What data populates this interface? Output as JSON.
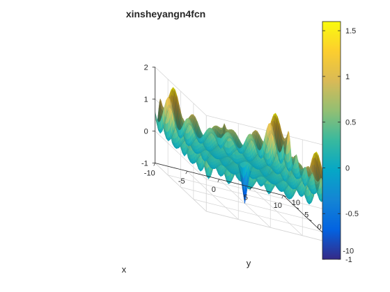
{
  "chart_data": {
    "type": "surface",
    "title": "xinsheyangn4fcn",
    "xlabel": "x",
    "ylabel": "y",
    "zlabel": "",
    "xlim": [
      -10,
      10
    ],
    "ylim": [
      -10,
      10
    ],
    "zlim": [
      -1,
      2
    ],
    "x_ticks": [
      "-10",
      "-5",
      "0",
      "5",
      "10"
    ],
    "y_ticks": [
      "-10",
      "-5",
      "0",
      "5",
      "10"
    ],
    "z_ticks": [
      "-1",
      "0",
      "1",
      "2"
    ],
    "colormap": "parula",
    "clim": [
      -1,
      1.6
    ],
    "colorbar_ticks": [
      "-1",
      "-0.5",
      "0",
      "0.5",
      "1",
      "1.5"
    ],
    "colorbar_tick_values": [
      -1,
      -0.5,
      0,
      0.5,
      1,
      1.5
    ],
    "z_range_observed": {
      "min": -1,
      "max": 1.6
    },
    "minimum_at": {
      "x": 0,
      "y": 0,
      "z": -1
    },
    "grid": true
  }
}
